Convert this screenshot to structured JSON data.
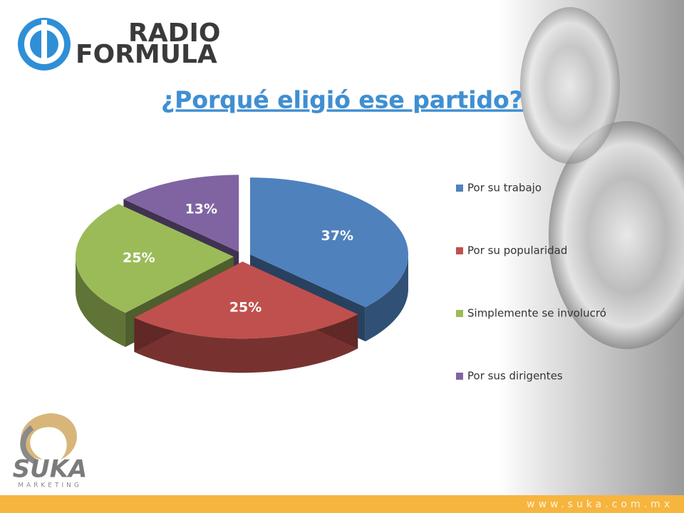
{
  "chart_data": {
    "type": "pie",
    "title": "¿Porqué eligió ese partido?",
    "categories": [
      "Por su trabajo",
      "Por su popularidad",
      "Simplemente se involucró",
      "Por sus dirigentes"
    ],
    "values": [
      37,
      25,
      25,
      13
    ],
    "value_labels": [
      "37%",
      "25%",
      "25%",
      "13%"
    ],
    "colors": [
      "#4f81bd",
      "#c0504d",
      "#9bbb59",
      "#8064a2"
    ],
    "legend": "right"
  },
  "branding": {
    "radio_logo": [
      "RADIO",
      "FORMULA"
    ],
    "suka_logo": "SUKA",
    "suka_tagline": "MARKETING",
    "website": "www.suka.com.mx"
  }
}
